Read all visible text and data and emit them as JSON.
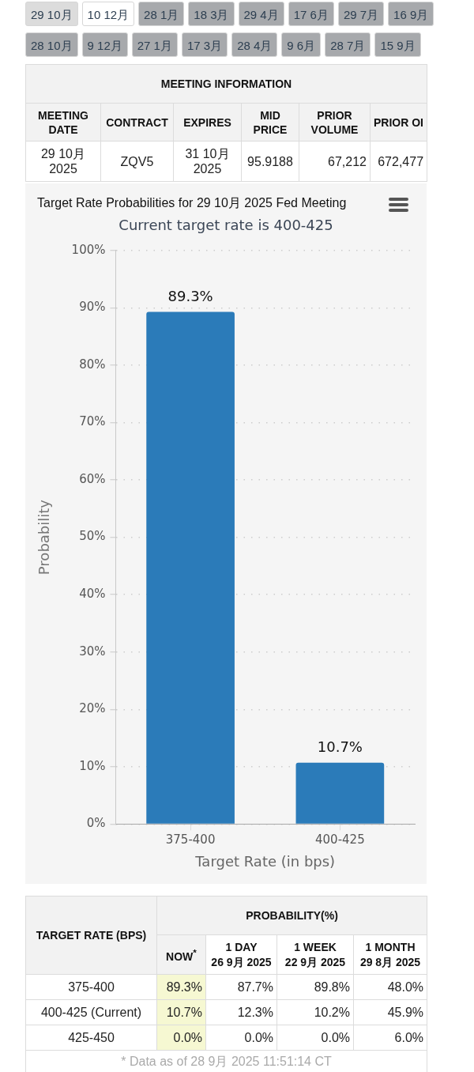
{
  "chart_data": [
    {
      "type": "other",
      "annotations": [
        "29 10月",
        "10 12月",
        "28 1月",
        "18 3月",
        "29 4月",
        "17 6月",
        "29 7月",
        "16 9月",
        "28 10月",
        "9 12月",
        "27 1月",
        "17 3月",
        "28 4月",
        "9 6月",
        "28 7月",
        "15 9月"
      ],
      "colors": [
        "#dcdcdc",
        "#ffffff",
        "#a7a9ac",
        "#a7a9ac",
        "#a7a9ac",
        "#a7a9ac",
        "#a7a9ac",
        "#a7a9ac",
        "#a7a9ac",
        "#a7a9ac",
        "#a7a9ac",
        "#a7a9ac",
        "#a7a9ac",
        "#a7a9ac",
        "#a7a9ac",
        "#a7a9ac"
      ]
    },
    {
      "type": "other",
      "title": "MEETING INFORMATION",
      "annotations": [
        "MEETING DATE",
        "CONTRACT",
        "EXPIRES",
        "MID PRICE",
        "PRIOR VOLUME",
        "PRIOR OI",
        "29 10月 2025",
        "ZQV5",
        "31 10月 2025",
        "95.9188",
        "67,212",
        "672,477"
      ]
    },
    {
      "type": "bar",
      "title": "Target Rate Probabilities for 29 10月 2025 Fed Meeting",
      "subtitle": "Current target rate is 400-425",
      "xlabel": "Target Rate (in bps)",
      "ylabel": "Probability",
      "categories": [
        "375-400",
        "400-425"
      ],
      "values": [
        89.3,
        10.7
      ],
      "value_labels": [
        "89.3%",
        "10.7%"
      ],
      "color": "#2b7bb9",
      "ylim": [
        0,
        100
      ],
      "yticks": [
        {
          "value": 0,
          "label": "0%"
        },
        {
          "value": 10,
          "label": "10%"
        },
        {
          "value": 20,
          "label": "20%"
        },
        {
          "value": 30,
          "label": "30%"
        },
        {
          "value": 40,
          "label": "40%"
        },
        {
          "value": 50,
          "label": "50%"
        },
        {
          "value": 60,
          "label": "60%"
        },
        {
          "value": 70,
          "label": "70%"
        },
        {
          "value": 80,
          "label": "80%"
        },
        {
          "value": 90,
          "label": "90%"
        },
        {
          "value": 100,
          "label": "100%"
        }
      ],
      "grid": "y"
    },
    {
      "type": "other",
      "annotations": [
        "TARGET RATE (BPS)",
        "PROBABILITY(%)",
        "NOW$^{*}$",
        "1 DAY",
        "26 9月 2025",
        "1 WEEK",
        "22 9月 2025",
        "1 MONTH",
        "29 8月 2025",
        "375-400",
        "89.3%",
        "87.7%",
        "89.8%",
        "48.0%",
        "400-425 (Current)",
        "10.7%",
        "12.3%",
        "10.2%",
        "45.9%",
        "425-450",
        "0.0%",
        "0.0%",
        "0.0%",
        "6.0%",
        "* Data as of 28 9月 2025 11:51:14 CT"
      ]
    }
  ]
}
